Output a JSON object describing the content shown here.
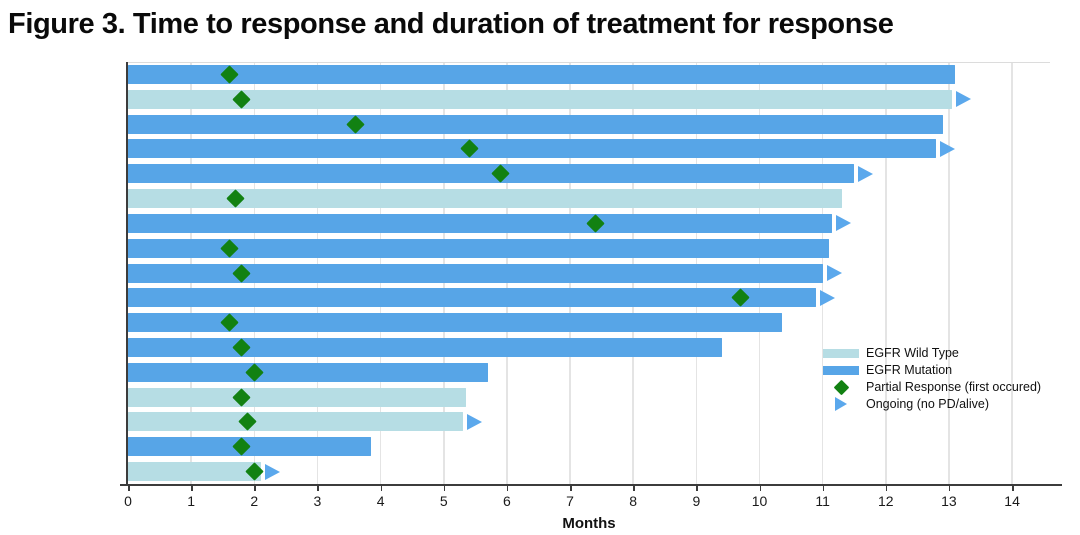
{
  "figure": {
    "title": "Figure 3. Time to response and duration of treatment for response"
  },
  "axis": {
    "label": "Months",
    "ticks": [
      "0",
      "1",
      "2",
      "3",
      "4",
      "5",
      "6",
      "7",
      "8",
      "9",
      "10",
      "11",
      "12",
      "13",
      "14"
    ],
    "min": 0,
    "max": 14
  },
  "legend": {
    "items": [
      {
        "label": "EGFR Wild Type",
        "type": "bar-swatch",
        "color_key": "wild_type"
      },
      {
        "label": "EGFR Mutation",
        "type": "bar-swatch",
        "color_key": "mutation"
      },
      {
        "label": "Partial Response (first occured)",
        "type": "diamond",
        "color_key": "response"
      },
      {
        "label": "Ongoing (no PD/alive)",
        "type": "triangle",
        "color_key": "ongoing"
      }
    ]
  },
  "colors": {
    "wild_type": "#b6dde4",
    "mutation": "#57a5e7",
    "response": "#128112",
    "ongoing": "#5ba8ec",
    "axis": "#3c3c3c",
    "gridline": "#e4e4e4"
  },
  "chart_data": {
    "type": "bar",
    "orientation": "horizontal-swimmer",
    "title": "Figure 3. Time to response and duration of treatment for response",
    "xlabel": "Months",
    "xlim": [
      0,
      14.6
    ],
    "grid": true,
    "legend_position": "right-middle",
    "n_patients": 17,
    "patients": [
      {
        "group": "EGFR Mutation",
        "duration_months": 13.1,
        "response_months": 1.6,
        "ongoing": false
      },
      {
        "group": "EGFR Wild Type",
        "duration_months": 13.05,
        "response_months": 1.8,
        "ongoing": true
      },
      {
        "group": "EGFR Mutation",
        "duration_months": 12.9,
        "response_months": 3.6,
        "ongoing": false
      },
      {
        "group": "EGFR Mutation",
        "duration_months": 12.8,
        "response_months": 5.4,
        "ongoing": true
      },
      {
        "group": "EGFR Mutation",
        "duration_months": 11.5,
        "response_months": 5.9,
        "ongoing": true
      },
      {
        "group": "EGFR Wild Type",
        "duration_months": 11.3,
        "response_months": 1.7,
        "ongoing": false
      },
      {
        "group": "EGFR Mutation",
        "duration_months": 11.15,
        "response_months": 7.4,
        "ongoing": true
      },
      {
        "group": "EGFR Mutation",
        "duration_months": 11.1,
        "response_months": 1.6,
        "ongoing": false
      },
      {
        "group": "EGFR Mutation",
        "duration_months": 11.0,
        "response_months": 1.8,
        "ongoing": true
      },
      {
        "group": "EGFR Mutation",
        "duration_months": 10.9,
        "response_months": 9.7,
        "ongoing": true
      },
      {
        "group": "EGFR Mutation",
        "duration_months": 10.35,
        "response_months": 1.6,
        "ongoing": false
      },
      {
        "group": "EGFR Mutation",
        "duration_months": 9.4,
        "response_months": 1.8,
        "ongoing": false
      },
      {
        "group": "EGFR Mutation",
        "duration_months": 5.7,
        "response_months": 2.0,
        "ongoing": false
      },
      {
        "group": "EGFR Wild Type",
        "duration_months": 5.35,
        "response_months": 1.8,
        "ongoing": false
      },
      {
        "group": "EGFR Wild Type",
        "duration_months": 5.3,
        "response_months": 1.9,
        "ongoing": true
      },
      {
        "group": "EGFR Mutation",
        "duration_months": 3.85,
        "response_months": 1.8,
        "ongoing": false
      },
      {
        "group": "EGFR Wild Type",
        "duration_months": 2.1,
        "response_months": 2.0,
        "ongoing": true
      }
    ]
  }
}
